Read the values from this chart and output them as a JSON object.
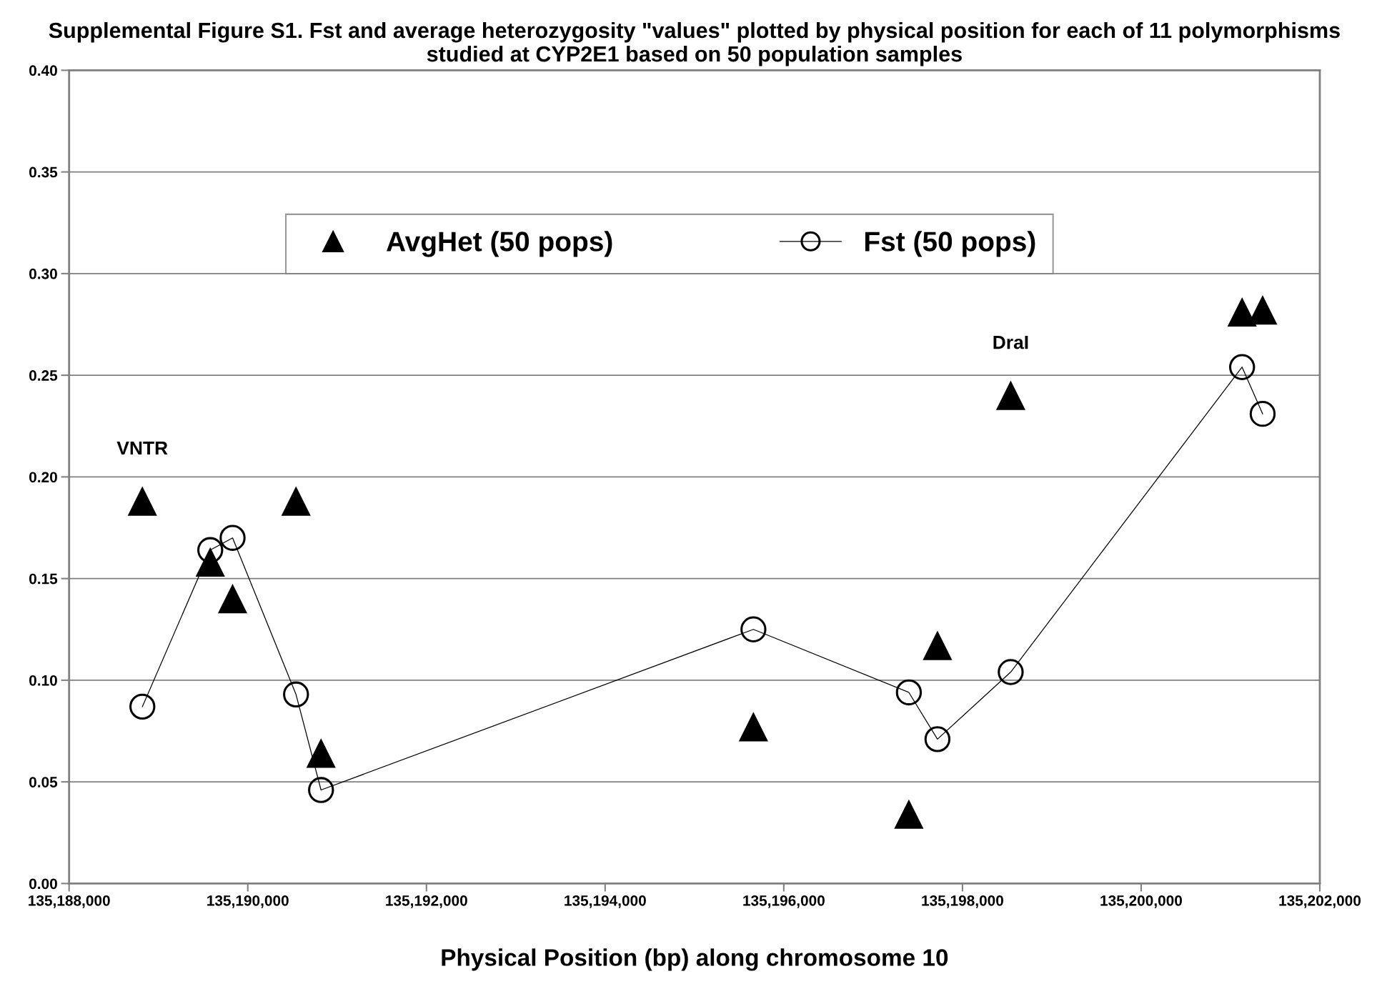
{
  "chart_data": {
    "type": "scatter",
    "title": "Supplemental Figure S1. Fst and average heterozygosity \"values\" plotted by physical position for each of 11 polymorphisms studied at CYP2E1 based on 50 population samples",
    "xlabel": "Physical Position (bp) along chromosome 10",
    "x": [
      135188820,
      135189580,
      135189830,
      135190540,
      135190820,
      135195660,
      135197400,
      135197720,
      135198540,
      135201130,
      135201360
    ],
    "series": [
      {
        "name": "AvgHet (50 pops)",
        "marker": "triangle",
        "color": "#000000",
        "values": [
          0.188,
          0.158,
          0.14,
          0.188,
          0.064,
          0.077,
          0.034,
          0.117,
          0.24,
          0.281,
          0.282
        ]
      },
      {
        "name": "Fst (50 pops)",
        "type": "line",
        "marker": "circle",
        "color": "#000000",
        "values": [
          0.087,
          0.164,
          0.17,
          0.093,
          0.046,
          0.125,
          0.094,
          0.071,
          0.104,
          0.254,
          0.231
        ]
      }
    ],
    "annotations": [
      {
        "text": "VNTR",
        "x": 135188820,
        "y": 0.188
      },
      {
        "text": "DraI",
        "x": 135198540,
        "y": 0.24
      }
    ],
    "xlim": [
      135188000,
      135202000
    ],
    "xticks": [
      {
        "value": 135188000,
        "label": "135,188,000"
      },
      {
        "value": 135190000,
        "label": "135,190,000"
      },
      {
        "value": 135192000,
        "label": "135,192,000"
      },
      {
        "value": 135194000,
        "label": "135,194,000"
      },
      {
        "value": 135196000,
        "label": "135,196,000"
      },
      {
        "value": 135198000,
        "label": "135,198,000"
      },
      {
        "value": 135200000,
        "label": "135,200,000"
      },
      {
        "value": 135202000,
        "label": "135,202,000"
      }
    ],
    "ylim": [
      0,
      0.4
    ],
    "yticks": [
      {
        "value": 0,
        "label": "0.00"
      },
      {
        "value": 0.05,
        "label": "0.05"
      },
      {
        "value": 0.1,
        "label": "0.10"
      },
      {
        "value": 0.15,
        "label": "0.15"
      },
      {
        "value": 0.2,
        "label": "0.20"
      },
      {
        "value": 0.25,
        "label": "0.25"
      },
      {
        "value": 0.3,
        "label": "0.30"
      },
      {
        "value": 0.35,
        "label": "0.35"
      },
      {
        "value": 0.4,
        "label": "0.40"
      }
    ],
    "grid": "y",
    "legend": "top"
  }
}
